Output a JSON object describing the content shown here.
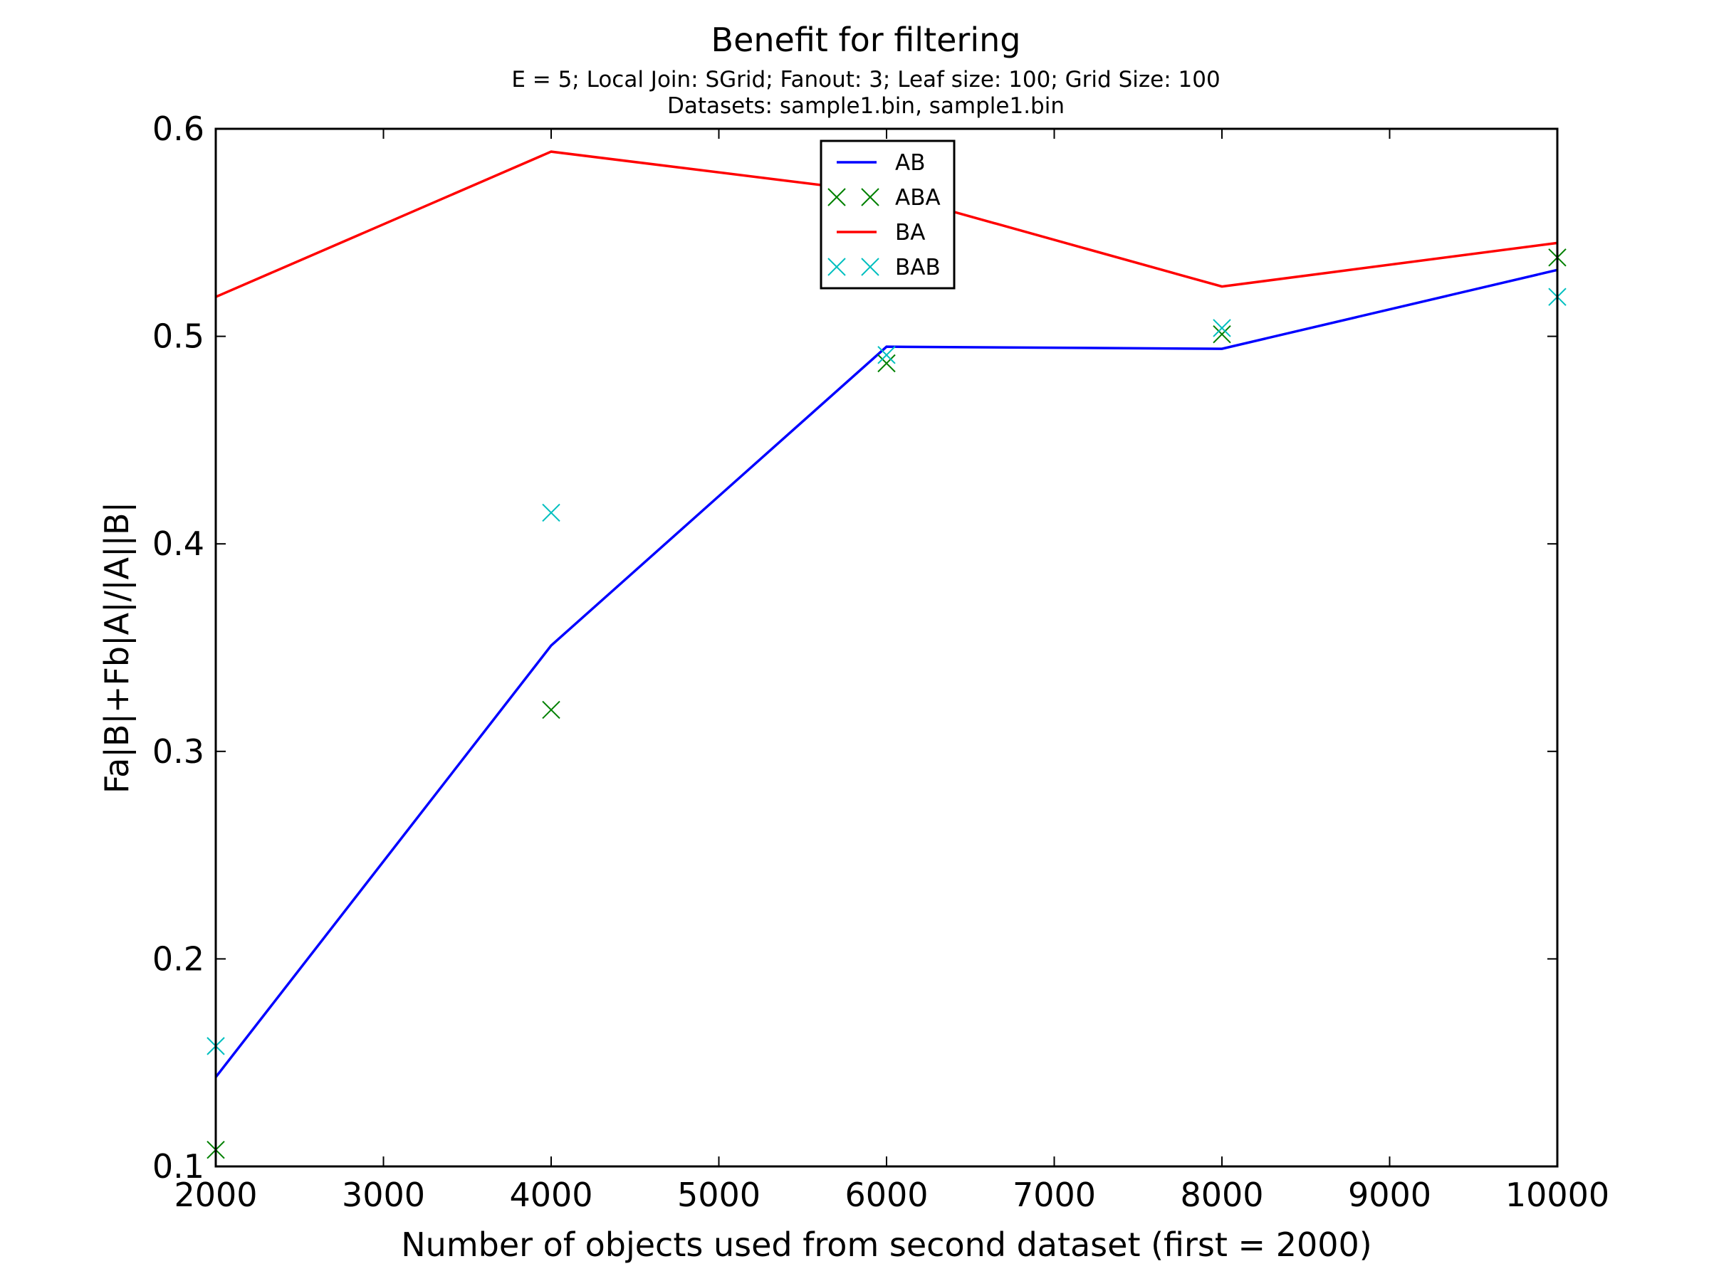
{
  "chart_data": {
    "type": "line",
    "title": "Benefit for filtering",
    "subtitle_lines": [
      "E = 5; Local Join: SGrid; Fanout: 3; Leaf size: 100; Grid Size: 100",
      "Datasets: sample1.bin, sample1.bin"
    ],
    "xlabel": "Number of objects used from second dataset (first = 2000)",
    "ylabel": "Fa|B|+Fb|A|/|A||B|",
    "xlim": [
      2000,
      10000
    ],
    "ylim": [
      0.1,
      0.6
    ],
    "xticks": [
      "2000",
      "3000",
      "4000",
      "5000",
      "6000",
      "7000",
      "8000",
      "9000",
      "10000"
    ],
    "yticks": [
      "0.1",
      "0.2",
      "0.3",
      "0.4",
      "0.5",
      "0.6"
    ],
    "grid": false,
    "legend_position": "top-center",
    "x": [
      2000,
      4000,
      6000,
      8000,
      10000
    ],
    "series": [
      {
        "name": "AB",
        "style": "line",
        "color": "#0000ff",
        "values": [
          0.143,
          0.351,
          0.495,
          0.494,
          0.532
        ]
      },
      {
        "name": "ABA",
        "style": "x-marker",
        "color": "#008000",
        "values": [
          0.108,
          0.32,
          0.487,
          0.501,
          0.538
        ]
      },
      {
        "name": "BA",
        "style": "line",
        "color": "#ff0000",
        "values": [
          0.519,
          0.589,
          0.569,
          0.524,
          0.545
        ]
      },
      {
        "name": "BAB",
        "style": "x-marker",
        "color": "#00bfbf",
        "values": [
          0.158,
          0.415,
          0.491,
          0.504,
          0.519
        ]
      }
    ]
  }
}
